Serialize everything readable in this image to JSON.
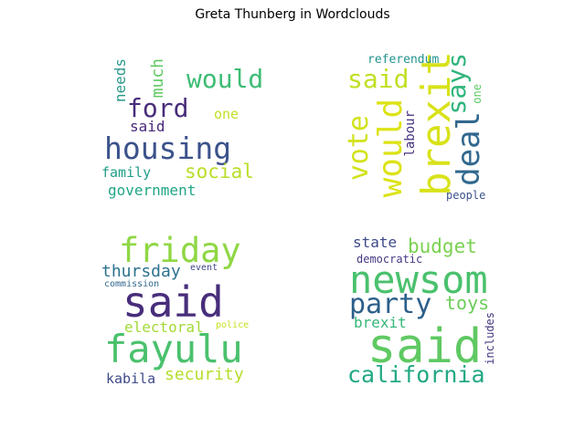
{
  "title": "Greta Thunberg in Wordclouds",
  "chart_data": {
    "type": "wordcloud",
    "title": "Greta Thunberg in Wordclouds",
    "clouds": [
      {
        "words": [
          {
            "text": "housing",
            "rank": 1,
            "color": "#3b528b"
          },
          {
            "text": "would",
            "rank": 2,
            "color": "#3dbc74"
          },
          {
            "text": "ford",
            "rank": 3,
            "color": "#472c7a"
          },
          {
            "text": "social",
            "rank": 4,
            "color": "#b8de29"
          },
          {
            "text": "government",
            "rank": 5,
            "color": "#21a685"
          },
          {
            "text": "much",
            "rank": 6,
            "color": "#5ec962"
          },
          {
            "text": "needs",
            "rank": 7,
            "color": "#2a9a8a"
          },
          {
            "text": "family",
            "rank": 8,
            "color": "#1f9e89"
          },
          {
            "text": "said",
            "rank": 9,
            "color": "#482878"
          },
          {
            "text": "one",
            "rank": 10,
            "color": "#c2df23"
          }
        ]
      },
      {
        "words": [
          {
            "text": "brexit",
            "rank": 1,
            "color": "#d8e219"
          },
          {
            "text": "deal",
            "rank": 2,
            "color": "#31688e"
          },
          {
            "text": "would",
            "rank": 3,
            "color": "#dde318"
          },
          {
            "text": "said",
            "rank": 4,
            "color": "#c2df23"
          },
          {
            "text": "vote",
            "rank": 5,
            "color": "#d2e21b"
          },
          {
            "text": "says",
            "rank": 6,
            "color": "#2fb47c"
          },
          {
            "text": "labour",
            "rank": 7,
            "color": "#46307e"
          },
          {
            "text": "people",
            "rank": 8,
            "color": "#3b528b"
          },
          {
            "text": "referendum",
            "rank": 9,
            "color": "#20928c"
          },
          {
            "text": "one",
            "rank": 10,
            "color": "#5ec962"
          }
        ]
      },
      {
        "words": [
          {
            "text": "said",
            "rank": 1,
            "color": "#472d7b"
          },
          {
            "text": "fayulu",
            "rank": 2,
            "color": "#4ac16d"
          },
          {
            "text": "friday",
            "rank": 3,
            "color": "#8fd744"
          },
          {
            "text": "thursday",
            "rank": 4,
            "color": "#2c728e"
          },
          {
            "text": "security",
            "rank": 5,
            "color": "#b5de2b"
          },
          {
            "text": "electoral",
            "rank": 6,
            "color": "#a2da37"
          },
          {
            "text": "kabila",
            "rank": 7,
            "color": "#3e4a89"
          },
          {
            "text": "event",
            "rank": 8,
            "color": "#404688"
          },
          {
            "text": "commission",
            "rank": 9,
            "color": "#31688e"
          },
          {
            "text": "police",
            "rank": 10,
            "color": "#c8e020"
          }
        ]
      },
      {
        "words": [
          {
            "text": "said",
            "rank": 1,
            "color": "#5ec962"
          },
          {
            "text": "newsom",
            "rank": 2,
            "color": "#4ac16d"
          },
          {
            "text": "party",
            "rank": 3,
            "color": "#2c5f8a"
          },
          {
            "text": "california",
            "rank": 4,
            "color": "#22a884"
          },
          {
            "text": "budget",
            "rank": 5,
            "color": "#7ad151"
          },
          {
            "text": "toys",
            "rank": 6,
            "color": "#6ccd5a"
          },
          {
            "text": "state",
            "rank": 7,
            "color": "#3e4989"
          },
          {
            "text": "brexit",
            "rank": 8,
            "color": "#35b779"
          },
          {
            "text": "democratic",
            "rank": 9,
            "color": "#443983"
          },
          {
            "text": "includes",
            "rank": 10,
            "color": "#453781"
          }
        ]
      }
    ]
  }
}
